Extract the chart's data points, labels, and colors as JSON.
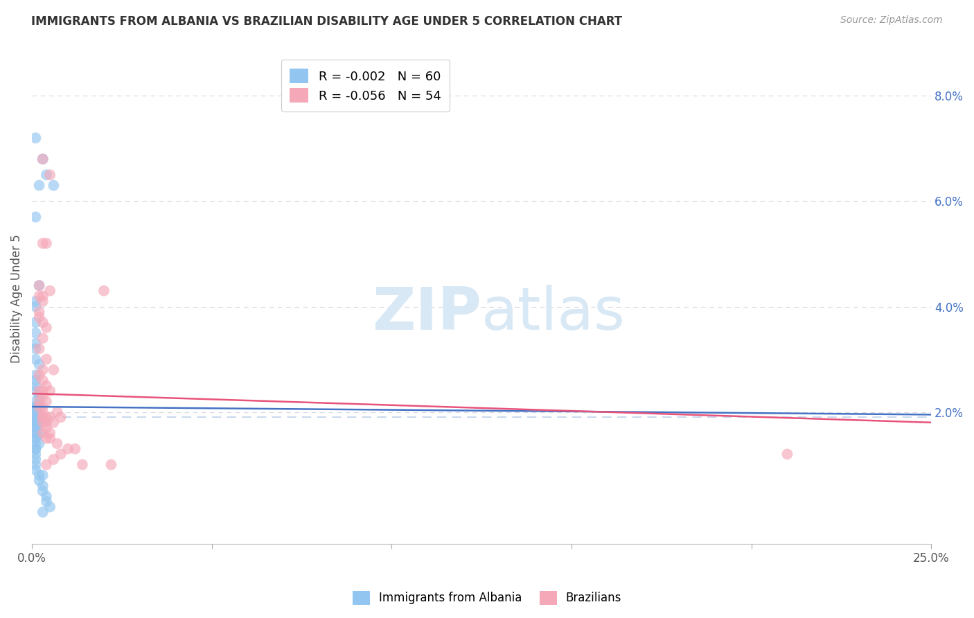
{
  "title": "IMMIGRANTS FROM ALBANIA VS BRAZILIAN DISABILITY AGE UNDER 5 CORRELATION CHART",
  "source": "Source: ZipAtlas.com",
  "ylabel": "Disability Age Under 5",
  "ytick_labels": [
    "",
    "2.0%",
    "4.0%",
    "6.0%",
    "8.0%"
  ],
  "yticks": [
    0.0,
    0.02,
    0.04,
    0.06,
    0.08
  ],
  "xlim": [
    0.0,
    0.25
  ],
  "ylim": [
    -0.005,
    0.088
  ],
  "color_blue": "#92C5F0",
  "color_pink": "#F5A8B8",
  "trend_blue": "#4472C4",
  "trend_pink": "#E8537A",
  "dash_color": "#B8CCE8",
  "grid_color": "#C8C8D8",
  "watermark_color": "#D8E8F5",
  "albania_x": [
    0.001,
    0.003,
    0.004,
    0.002,
    0.006,
    0.001,
    0.002,
    0.001,
    0.001,
    0.001,
    0.001,
    0.001,
    0.001,
    0.001,
    0.002,
    0.001,
    0.001,
    0.001,
    0.001,
    0.002,
    0.001,
    0.001,
    0.001,
    0.002,
    0.001,
    0.001,
    0.001,
    0.002,
    0.001,
    0.002,
    0.001,
    0.001,
    0.001,
    0.001,
    0.002,
    0.001,
    0.001,
    0.001,
    0.001,
    0.002,
    0.001,
    0.001,
    0.001,
    0.002,
    0.001,
    0.001,
    0.001,
    0.001,
    0.001,
    0.001,
    0.002,
    0.003,
    0.002,
    0.003,
    0.003,
    0.004,
    0.004,
    0.005,
    0.003,
    0.002
  ],
  "albania_y": [
    0.072,
    0.068,
    0.065,
    0.063,
    0.063,
    0.057,
    0.044,
    0.041,
    0.04,
    0.037,
    0.035,
    0.033,
    0.032,
    0.03,
    0.029,
    0.027,
    0.026,
    0.025,
    0.024,
    0.023,
    0.022,
    0.021,
    0.021,
    0.021,
    0.02,
    0.02,
    0.019,
    0.019,
    0.019,
    0.019,
    0.018,
    0.018,
    0.018,
    0.018,
    0.018,
    0.017,
    0.017,
    0.016,
    0.016,
    0.016,
    0.015,
    0.015,
    0.014,
    0.014,
    0.013,
    0.013,
    0.012,
    0.011,
    0.01,
    0.009,
    0.008,
    0.008,
    0.007,
    0.006,
    0.005,
    0.004,
    0.003,
    0.002,
    0.001,
    0.019
  ],
  "brazil_x": [
    0.003,
    0.005,
    0.003,
    0.002,
    0.003,
    0.002,
    0.004,
    0.003,
    0.005,
    0.002,
    0.002,
    0.003,
    0.004,
    0.003,
    0.002,
    0.004,
    0.003,
    0.002,
    0.006,
    0.003,
    0.004,
    0.003,
    0.005,
    0.002,
    0.003,
    0.004,
    0.002,
    0.003,
    0.002,
    0.003,
    0.007,
    0.004,
    0.003,
    0.003,
    0.005,
    0.008,
    0.006,
    0.004,
    0.003,
    0.004,
    0.005,
    0.003,
    0.004,
    0.005,
    0.007,
    0.01,
    0.012,
    0.008,
    0.014,
    0.02,
    0.006,
    0.004,
    0.022,
    0.21
  ],
  "brazil_y": [
    0.068,
    0.065,
    0.052,
    0.044,
    0.042,
    0.042,
    0.052,
    0.041,
    0.043,
    0.039,
    0.038,
    0.037,
    0.036,
    0.034,
    0.032,
    0.03,
    0.028,
    0.027,
    0.028,
    0.026,
    0.025,
    0.024,
    0.024,
    0.024,
    0.023,
    0.022,
    0.022,
    0.021,
    0.021,
    0.02,
    0.02,
    0.019,
    0.019,
    0.019,
    0.019,
    0.019,
    0.018,
    0.018,
    0.018,
    0.017,
    0.016,
    0.016,
    0.015,
    0.015,
    0.014,
    0.013,
    0.013,
    0.012,
    0.01,
    0.043,
    0.011,
    0.01,
    0.01,
    0.012
  ]
}
